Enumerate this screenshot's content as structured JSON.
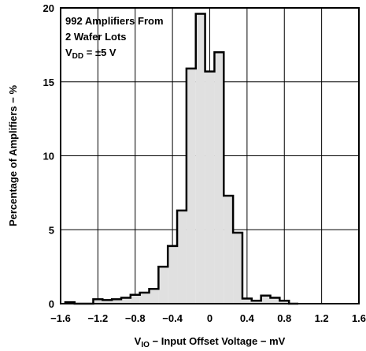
{
  "chart_data": {
    "type": "bar",
    "subtype": "histogram",
    "xlabel": {
      "symbol": "V",
      "subscript": "IO",
      "text": " − Input Offset Voltage − mV"
    },
    "ylabel": "Percentage of Amplifiers − %",
    "xlim": [
      -1.6,
      1.6
    ],
    "ylim": [
      0,
      20
    ],
    "xticks": [
      -1.6,
      -1.2,
      -0.8,
      -0.4,
      0,
      0.4,
      0.8,
      1.2,
      1.6
    ],
    "xtick_labels": [
      "−1.6",
      "−1.2",
      "−0.8",
      "−0.4",
      "0",
      "0.4",
      "0.8",
      "1.2",
      "1.6"
    ],
    "yticks": [
      0,
      5,
      10,
      15,
      20
    ],
    "ytick_labels": [
      "0",
      "5",
      "10",
      "15",
      "20"
    ],
    "grid": true,
    "bin_width": 0.1,
    "bin_starts": [
      -1.55,
      -1.45,
      -1.35,
      -1.25,
      -1.15,
      -1.05,
      -0.95,
      -0.85,
      -0.75,
      -0.65,
      -0.55,
      -0.45,
      -0.35,
      -0.25,
      -0.15,
      -0.05,
      0.05,
      0.15,
      0.25,
      0.35,
      0.45,
      0.55,
      0.65,
      0.75,
      0.85
    ],
    "values": [
      0.1,
      0,
      0,
      0.3,
      0.25,
      0.3,
      0.4,
      0.6,
      0.75,
      1.0,
      2.5,
      3.9,
      6.3,
      15.9,
      19.6,
      15.7,
      17.0,
      7.3,
      4.8,
      0.35,
      0.2,
      0.55,
      0.4,
      0.2,
      0
    ],
    "fill_color": "#e0e0e0",
    "line_color": "#000000",
    "annotation": {
      "line1": "992 Amplifiers From",
      "line2": "2 Wafer Lots",
      "line3_symbol": "V",
      "line3_subscript": "DD",
      "line3_text": " = ±5 V"
    }
  }
}
